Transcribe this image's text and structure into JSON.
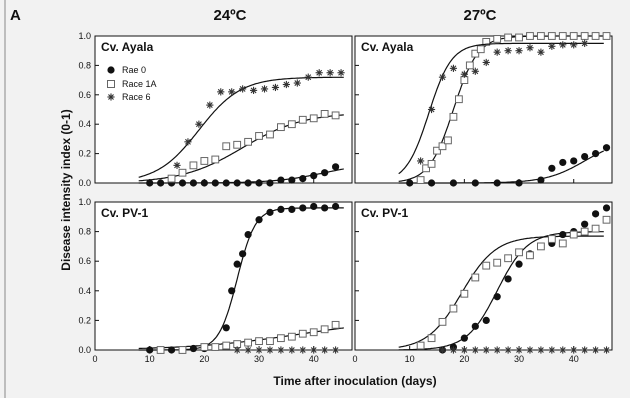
{
  "figure": {
    "panel_letter": "A",
    "col_titles": [
      "24ºC",
      "27ºC"
    ],
    "ylabel": "Disease intensity index (0-1)",
    "xlabel": "Time after inoculation (days)"
  },
  "legend": {
    "placement": "top-left of top-left panel",
    "entries": [
      {
        "label": "Rae 0",
        "marker": "filled-circle"
      },
      {
        "label": "Race 1A",
        "marker": "open-square"
      },
      {
        "label": "Race 6",
        "marker": "asterisk"
      }
    ]
  },
  "colors": {
    "background": "#f2f2f2",
    "plot_area": "#ffffff",
    "ink": "#111111",
    "open_marker": "#666666"
  },
  "chart_data": [
    {
      "type": "scatter",
      "panel": "24ºC Cv. Ayala",
      "title": "Cv. Ayala",
      "xlim": [
        0,
        47
      ],
      "ylim": [
        0,
        1
      ],
      "xticks": [
        0,
        10,
        20,
        30,
        40
      ],
      "yticks": [
        "0.0",
        "0.2",
        "0.4",
        "0.6",
        "0.8",
        "1.0"
      ],
      "series": [
        {
          "name": "Rae 0",
          "marker": "filled-circle",
          "x": [
            10,
            12,
            14,
            16,
            18,
            20,
            22,
            24,
            26,
            28,
            30,
            32,
            34,
            36,
            38,
            40,
            42,
            44
          ],
          "y": [
            0,
            0,
            0,
            0,
            0,
            0,
            0,
            0,
            0,
            0,
            0,
            0,
            0.02,
            0.02,
            0.03,
            0.05,
            0.07,
            0.11
          ],
          "fit": {
            "K": 0.14,
            "r": 0.22,
            "x0": 42
          }
        },
        {
          "name": "Race 1A",
          "marker": "open-square",
          "x": [
            14,
            16,
            18,
            20,
            22,
            24,
            26,
            28,
            30,
            32,
            34,
            36,
            38,
            40,
            42,
            44
          ],
          "y": [
            0.03,
            0.07,
            0.12,
            0.15,
            0.16,
            0.25,
            0.26,
            0.28,
            0.32,
            0.33,
            0.38,
            0.4,
            0.43,
            0.44,
            0.47,
            0.46
          ],
          "fit": {
            "K": 0.48,
            "r": 0.18,
            "x0": 27
          }
        },
        {
          "name": "Race 6",
          "marker": "asterisk",
          "x": [
            15,
            17,
            19,
            21,
            23,
            25,
            27,
            29,
            31,
            33,
            35,
            37,
            39,
            41,
            43,
            45
          ],
          "y": [
            0.12,
            0.28,
            0.4,
            0.53,
            0.62,
            0.62,
            0.64,
            0.63,
            0.64,
            0.65,
            0.67,
            0.68,
            0.72,
            0.75,
            0.75,
            0.75
          ],
          "fit": {
            "K": 0.72,
            "r": 0.26,
            "x0": 19
          }
        }
      ]
    },
    {
      "type": "scatter",
      "panel": "27ºC Cv. Ayala",
      "title": "Cv. Ayala",
      "xlim": [
        0,
        47
      ],
      "ylim": [
        0,
        1
      ],
      "xticks": [
        0,
        10,
        20,
        30,
        40
      ],
      "yticks": [
        "0.0",
        "0.2",
        "0.4",
        "0.6",
        "0.8",
        "1.0"
      ],
      "series": [
        {
          "name": "Rae 0",
          "marker": "filled-circle",
          "x": [
            10,
            14,
            18,
            22,
            26,
            30,
            34,
            36,
            38,
            40,
            42,
            44,
            46
          ],
          "y": [
            0,
            0,
            0,
            0,
            0,
            0,
            0.02,
            0.1,
            0.14,
            0.15,
            0.18,
            0.2,
            0.24
          ],
          "fit": {
            "K": 0.3,
            "r": 0.28,
            "x0": 42
          }
        },
        {
          "name": "Race 1A",
          "marker": "open-square",
          "x": [
            12,
            13,
            14,
            15,
            16,
            17,
            18,
            19,
            20,
            21,
            22,
            23,
            24,
            26,
            28,
            30,
            32,
            34,
            36,
            38,
            40,
            42,
            44,
            46
          ],
          "y": [
            0.02,
            0.1,
            0.13,
            0.22,
            0.25,
            0.29,
            0.45,
            0.57,
            0.7,
            0.8,
            0.88,
            0.91,
            0.96,
            0.98,
            0.99,
            0.99,
            1.0,
            1.0,
            1.0,
            1.0,
            1.0,
            1.0,
            1.0,
            1.0
          ],
          "fit": {
            "K": 1.0,
            "r": 0.45,
            "x0": 18
          }
        },
        {
          "name": "Race 6",
          "marker": "asterisk",
          "x": [
            12,
            14,
            16,
            18,
            20,
            22,
            24,
            26,
            28,
            30,
            32,
            34,
            36,
            38,
            40,
            42
          ],
          "y": [
            0.15,
            0.5,
            0.72,
            0.78,
            0.74,
            0.76,
            0.82,
            0.89,
            0.9,
            0.9,
            0.92,
            0.89,
            0.93,
            0.94,
            0.94,
            0.95
          ],
          "fit": {
            "K": 0.95,
            "r": 0.48,
            "x0": 13.5
          }
        }
      ]
    },
    {
      "type": "scatter",
      "panel": "24ºC Cv. PV-1",
      "title": "Cv. PV-1",
      "xlim": [
        0,
        47
      ],
      "ylim": [
        0,
        1
      ],
      "xticks": [
        0,
        10,
        20,
        30,
        40
      ],
      "yticks": [
        "0.0",
        "0.2",
        "0.4",
        "0.6",
        "0.8",
        "1.0"
      ],
      "series": [
        {
          "name": "Rae 0",
          "marker": "filled-circle",
          "x": [
            10,
            12,
            14,
            16,
            18,
            20,
            22,
            24,
            25,
            26,
            27,
            28,
            30,
            32,
            34,
            36,
            38,
            40,
            42,
            44
          ],
          "y": [
            0,
            0,
            0,
            0,
            0.01,
            0.01,
            0.02,
            0.15,
            0.4,
            0.58,
            0.65,
            0.78,
            0.88,
            0.93,
            0.95,
            0.95,
            0.96,
            0.97,
            0.96,
            0.97
          ],
          "fit": {
            "K": 0.96,
            "r": 0.6,
            "x0": 26
          }
        },
        {
          "name": "Race 1A",
          "marker": "open-square",
          "x": [
            12,
            16,
            20,
            22,
            24,
            26,
            28,
            30,
            32,
            34,
            36,
            38,
            40,
            42,
            44
          ],
          "y": [
            0,
            0,
            0.02,
            0.02,
            0.03,
            0.04,
            0.05,
            0.06,
            0.06,
            0.08,
            0.09,
            0.11,
            0.12,
            0.14,
            0.17
          ],
          "fit": {
            "K": 0.22,
            "r": 0.1,
            "x0": 38
          }
        },
        {
          "name": "Race 6",
          "marker": "asterisk",
          "x": [
            26,
            28,
            30,
            32,
            34,
            36,
            38,
            40,
            42,
            44
          ],
          "y": [
            0,
            0,
            0,
            0,
            0,
            0,
            0,
            0,
            0,
            0
          ],
          "fit": null
        }
      ]
    },
    {
      "type": "scatter",
      "panel": "27ºC Cv. PV-1",
      "title": "Cv. PV-1",
      "xlim": [
        0,
        47
      ],
      "ylim": [
        0,
        1
      ],
      "xticks": [
        0,
        10,
        20,
        30,
        40
      ],
      "yticks": [
        "0.0",
        "0.2",
        "0.4",
        "0.6",
        "0.8",
        "1.0"
      ],
      "series": [
        {
          "name": "Rae 0",
          "marker": "filled-circle",
          "x": [
            16,
            18,
            20,
            22,
            24,
            26,
            28,
            30,
            32,
            34,
            36,
            38,
            40,
            42,
            44,
            46
          ],
          "y": [
            0,
            0.02,
            0.08,
            0.16,
            0.2,
            0.36,
            0.48,
            0.58,
            0.65,
            0.7,
            0.72,
            0.78,
            0.8,
            0.85,
            0.92,
            0.96
          ],
          "fit": {
            "K": 0.8,
            "r": 0.36,
            "x0": 26
          }
        },
        {
          "name": "Race 1A",
          "marker": "open-square",
          "x": [
            12,
            14,
            16,
            18,
            20,
            22,
            24,
            26,
            28,
            30,
            32,
            34,
            36,
            38,
            40,
            42,
            44,
            46
          ],
          "y": [
            0.03,
            0.08,
            0.19,
            0.28,
            0.38,
            0.49,
            0.57,
            0.59,
            0.62,
            0.66,
            0.64,
            0.7,
            0.75,
            0.72,
            0.78,
            0.8,
            0.82,
            0.88
          ],
          "fit": {
            "K": 0.77,
            "r": 0.32,
            "x0": 19.5
          }
        },
        {
          "name": "Race 6",
          "marker": "asterisk",
          "x": [
            16,
            18,
            20,
            22,
            24,
            26,
            28,
            30,
            32,
            34,
            36,
            38,
            40,
            42,
            44,
            46
          ],
          "y": [
            0,
            0,
            0,
            0,
            0,
            0,
            0,
            0,
            0,
            0,
            0,
            0,
            0,
            0,
            0,
            0
          ],
          "fit": null
        }
      ]
    }
  ]
}
